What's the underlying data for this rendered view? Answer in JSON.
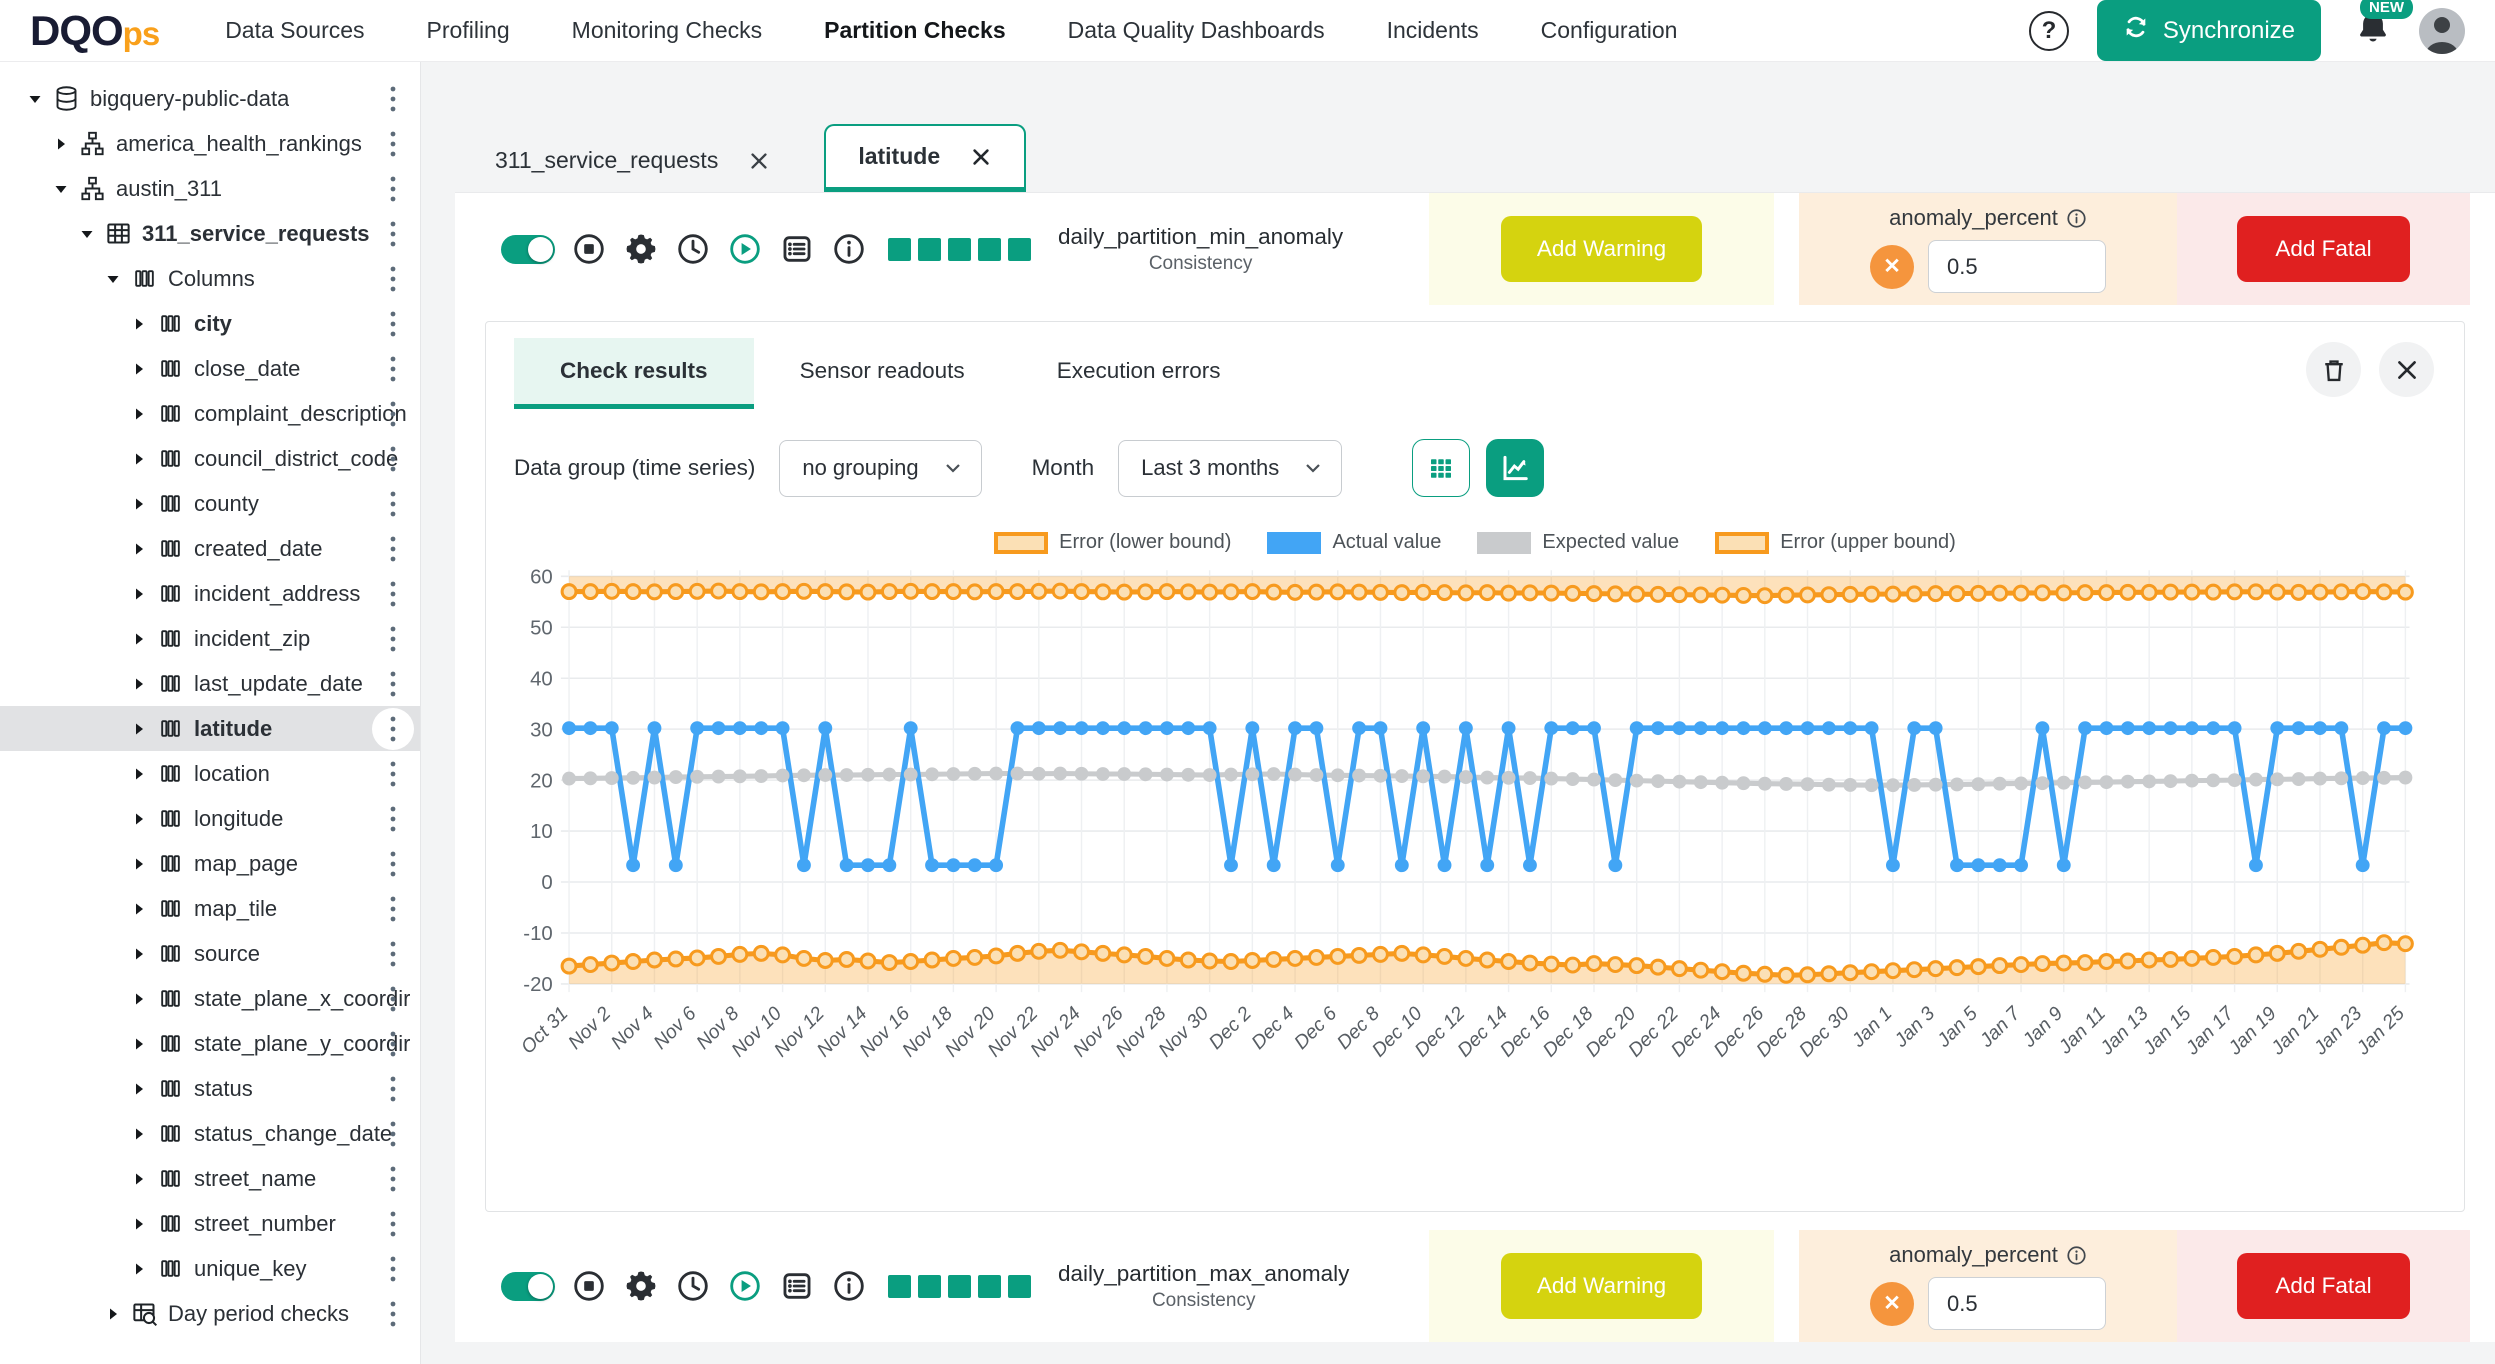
{
  "header": {
    "logo_primary": "DQO",
    "logo_secondary": "ps",
    "nav": [
      "Data Sources",
      "Profiling",
      "Monitoring Checks",
      "Partition Checks",
      "Data Quality Dashboards",
      "Incidents",
      "Configuration"
    ],
    "active_nav": "Partition Checks",
    "synchronize_label": "Synchronize",
    "notifications_badge": "NEW"
  },
  "sidebar": {
    "items": [
      {
        "level": 0,
        "icon": "database",
        "caret": "down",
        "label": "bigquery-public-data",
        "bold": false,
        "selected": false
      },
      {
        "level": 1,
        "icon": "schema",
        "caret": "right",
        "label": "america_health_rankings",
        "bold": false,
        "selected": false
      },
      {
        "level": 1,
        "icon": "schema",
        "caret": "down",
        "label": "austin_311",
        "bold": false,
        "selected": false
      },
      {
        "level": 2,
        "icon": "table",
        "caret": "down",
        "label": "311_service_requests",
        "bold": true,
        "selected": false
      },
      {
        "level": 3,
        "icon": "columns",
        "caret": "down",
        "label": "Columns",
        "bold": false,
        "selected": false
      },
      {
        "level": 4,
        "icon": "columns",
        "caret": "right",
        "label": "city",
        "bold": true,
        "selected": false
      },
      {
        "level": 4,
        "icon": "columns",
        "caret": "right",
        "label": "close_date",
        "bold": false,
        "selected": false
      },
      {
        "level": 4,
        "icon": "columns",
        "caret": "right",
        "label": "complaint_description",
        "bold": false,
        "selected": false
      },
      {
        "level": 4,
        "icon": "columns",
        "caret": "right",
        "label": "council_district_code",
        "bold": false,
        "selected": false
      },
      {
        "level": 4,
        "icon": "columns",
        "caret": "right",
        "label": "county",
        "bold": false,
        "selected": false
      },
      {
        "level": 4,
        "icon": "columns",
        "caret": "right",
        "label": "created_date",
        "bold": false,
        "selected": false
      },
      {
        "level": 4,
        "icon": "columns",
        "caret": "right",
        "label": "incident_address",
        "bold": false,
        "selected": false
      },
      {
        "level": 4,
        "icon": "columns",
        "caret": "right",
        "label": "incident_zip",
        "bold": false,
        "selected": false
      },
      {
        "level": 4,
        "icon": "columns",
        "caret": "right",
        "label": "last_update_date",
        "bold": false,
        "selected": false
      },
      {
        "level": 4,
        "icon": "columns",
        "caret": "right",
        "label": "latitude",
        "bold": true,
        "selected": true
      },
      {
        "level": 4,
        "icon": "columns",
        "caret": "right",
        "label": "location",
        "bold": false,
        "selected": false
      },
      {
        "level": 4,
        "icon": "columns",
        "caret": "right",
        "label": "longitude",
        "bold": false,
        "selected": false
      },
      {
        "level": 4,
        "icon": "columns",
        "caret": "right",
        "label": "map_page",
        "bold": false,
        "selected": false
      },
      {
        "level": 4,
        "icon": "columns",
        "caret": "right",
        "label": "map_tile",
        "bold": false,
        "selected": false
      },
      {
        "level": 4,
        "icon": "columns",
        "caret": "right",
        "label": "source",
        "bold": false,
        "selected": false
      },
      {
        "level": 4,
        "icon": "columns",
        "caret": "right",
        "label": "state_plane_x_coordir",
        "bold": false,
        "selected": false
      },
      {
        "level": 4,
        "icon": "columns",
        "caret": "right",
        "label": "state_plane_y_coordir",
        "bold": false,
        "selected": false
      },
      {
        "level": 4,
        "icon": "columns",
        "caret": "right",
        "label": "status",
        "bold": false,
        "selected": false
      },
      {
        "level": 4,
        "icon": "columns",
        "caret": "right",
        "label": "status_change_date",
        "bold": false,
        "selected": false
      },
      {
        "level": 4,
        "icon": "columns",
        "caret": "right",
        "label": "street_name",
        "bold": false,
        "selected": false
      },
      {
        "level": 4,
        "icon": "columns",
        "caret": "right",
        "label": "street_number",
        "bold": false,
        "selected": false
      },
      {
        "level": 4,
        "icon": "columns",
        "caret": "right",
        "label": "unique_key",
        "bold": false,
        "selected": false
      },
      {
        "level": 3,
        "icon": "table-search",
        "caret": "right",
        "label": "Day period checks",
        "bold": false,
        "selected": false
      }
    ]
  },
  "tabs": [
    {
      "label": "311_service_requests",
      "active": false
    },
    {
      "label": "latitude",
      "active": true
    }
  ],
  "check_rows": [
    {
      "name": "daily_partition_min_anomaly",
      "category": "Consistency",
      "warning_label": "Add Warning",
      "param_label": "anomaly_percent",
      "param_value": "0.5",
      "fatal_label": "Add Fatal"
    },
    {
      "name": "daily_partition_max_anomaly",
      "category": "Consistency",
      "warning_label": "Add Warning",
      "param_label": "anomaly_percent",
      "param_value": "0.5",
      "fatal_label": "Add Fatal"
    }
  ],
  "results_panel": {
    "tabs": [
      "Check results",
      "Sensor readouts",
      "Execution errors"
    ],
    "active_tab": "Check results",
    "data_group_label": "Data group (time series)",
    "data_group_value": "no grouping",
    "month_label": "Month",
    "month_value": "Last 3 months"
  },
  "chart_data": {
    "type": "line",
    "title": "",
    "xlabel": "",
    "ylabel": "",
    "ylim": [
      -20,
      60
    ],
    "ytick_step": 10,
    "x_tick_every": 2,
    "grid": true,
    "legend_position": "top-center",
    "legend": [
      {
        "label": "Error (lower bound)",
        "swatch": "band"
      },
      {
        "label": "Actual value",
        "swatch": "blue"
      },
      {
        "label": "Expected value",
        "swatch": "gray"
      },
      {
        "label": "Error (upper bound)",
        "swatch": "band"
      }
    ],
    "colors": {
      "blue": "#42a5f5",
      "gray": "#c9cbcd",
      "orange": "#f79a1e",
      "band": "rgba(247,154,30,0.3)",
      "band_solid": "#fbe0b5"
    },
    "x": [
      "Oct 31",
      "Nov 1",
      "Nov 2",
      "Nov 3",
      "Nov 4",
      "Nov 5",
      "Nov 6",
      "Nov 7",
      "Nov 8",
      "Nov 9",
      "Nov 10",
      "Nov 11",
      "Nov 12",
      "Nov 13",
      "Nov 14",
      "Nov 15",
      "Nov 16",
      "Nov 17",
      "Nov 18",
      "Nov 19",
      "Nov 20",
      "Nov 21",
      "Nov 22",
      "Nov 23",
      "Nov 24",
      "Nov 25",
      "Nov 26",
      "Nov 27",
      "Nov 28",
      "Nov 29",
      "Nov 30",
      "Dec 1",
      "Dec 2",
      "Dec 3",
      "Dec 4",
      "Dec 5",
      "Dec 6",
      "Dec 7",
      "Dec 8",
      "Dec 9",
      "Dec 10",
      "Dec 11",
      "Dec 12",
      "Dec 13",
      "Dec 14",
      "Dec 15",
      "Dec 16",
      "Dec 17",
      "Dec 18",
      "Dec 19",
      "Dec 20",
      "Dec 21",
      "Dec 22",
      "Dec 23",
      "Dec 24",
      "Dec 25",
      "Dec 26",
      "Dec 27",
      "Dec 28",
      "Dec 29",
      "Dec 30",
      "Dec 31",
      "Jan 1",
      "Jan 2",
      "Jan 3",
      "Jan 4",
      "Jan 5",
      "Jan 6",
      "Jan 7",
      "Jan 8",
      "Jan 9",
      "Jan 10",
      "Jan 11",
      "Jan 12",
      "Jan 13",
      "Jan 14",
      "Jan 15",
      "Jan 16",
      "Jan 17",
      "Jan 18",
      "Jan 19",
      "Jan 20",
      "Jan 21",
      "Jan 22",
      "Jan 23",
      "Jan 24",
      "Jan 25"
    ],
    "series": {
      "actual": [
        30.2,
        30.2,
        30.2,
        3.3,
        30.2,
        3.3,
        30.2,
        30.2,
        30.2,
        30.2,
        30.2,
        3.3,
        30.2,
        3.3,
        3.3,
        3.3,
        30.2,
        3.3,
        3.3,
        3.3,
        3.3,
        30.2,
        30.2,
        30.2,
        30.2,
        30.2,
        30.2,
        30.2,
        30.2,
        30.2,
        30.2,
        3.3,
        30.2,
        3.3,
        30.2,
        30.2,
        3.3,
        30.2,
        30.2,
        3.3,
        30.2,
        3.3,
        30.2,
        3.3,
        30.2,
        3.3,
        30.2,
        30.2,
        30.2,
        3.3,
        30.2,
        30.2,
        30.2,
        30.2,
        30.2,
        30.2,
        30.2,
        30.2,
        30.2,
        30.2,
        30.2,
        30.2,
        3.3,
        30.2,
        30.2,
        3.3,
        3.3,
        3.3,
        3.3,
        30.2,
        3.3,
        30.2,
        30.2,
        30.2,
        30.2,
        30.2,
        30.2,
        30.2,
        30.2,
        3.3,
        30.2,
        30.2,
        30.2,
        30.2,
        3.3,
        30.2,
        30.2
      ],
      "expected": [
        20.3,
        20.35,
        20.4,
        20.45,
        20.5,
        20.6,
        20.65,
        20.7,
        20.75,
        20.8,
        20.9,
        20.95,
        21.0,
        21.0,
        21.05,
        21.1,
        21.1,
        21.15,
        21.2,
        21.25,
        21.3,
        21.3,
        21.25,
        21.3,
        21.25,
        21.2,
        21.2,
        21.15,
        21.1,
        21.05,
        21.0,
        21.1,
        21.15,
        21.2,
        21.1,
        21.0,
        20.95,
        20.9,
        20.85,
        20.8,
        20.75,
        20.7,
        20.6,
        20.5,
        20.45,
        20.4,
        20.3,
        20.2,
        20.1,
        20.0,
        19.9,
        19.8,
        19.7,
        19.6,
        19.5,
        19.4,
        19.3,
        19.25,
        19.2,
        19.1,
        19.05,
        19.0,
        19.0,
        19.05,
        19.1,
        19.15,
        19.2,
        19.3,
        19.35,
        19.4,
        19.5,
        19.55,
        19.6,
        19.7,
        19.75,
        19.8,
        19.9,
        19.95,
        20.0,
        20.1,
        20.15,
        20.2,
        20.3,
        20.35,
        20.4,
        20.45,
        20.5
      ],
      "upper_bound": [
        57.0,
        57.0,
        57.05,
        57.0,
        56.95,
        57.0,
        57.05,
        57.1,
        57.0,
        56.95,
        57.0,
        57.05,
        57.0,
        56.95,
        56.9,
        57.0,
        57.05,
        57.0,
        57.0,
        56.95,
        57.0,
        57.0,
        57.05,
        57.1,
        57.0,
        56.95,
        56.9,
        56.95,
        57.0,
        56.95,
        56.9,
        56.95,
        57.0,
        56.9,
        56.85,
        56.9,
        56.95,
        56.9,
        56.85,
        56.8,
        56.85,
        56.8,
        56.75,
        56.8,
        56.7,
        56.75,
        56.7,
        56.65,
        56.6,
        56.55,
        56.5,
        56.45,
        56.4,
        56.35,
        56.3,
        56.25,
        56.2,
        56.3,
        56.35,
        56.4,
        56.45,
        56.5,
        56.5,
        56.55,
        56.6,
        56.6,
        56.65,
        56.7,
        56.7,
        56.75,
        56.75,
        56.8,
        56.8,
        56.85,
        56.85,
        56.9,
        56.9,
        56.9,
        56.95,
        56.95,
        56.9,
        56.85,
        56.9,
        56.95,
        57.0,
        56.95,
        56.9
      ],
      "lower_bound": [
        -16.5,
        -16.2,
        -15.9,
        -15.6,
        -15.3,
        -15.1,
        -14.9,
        -14.6,
        -14.2,
        -14.0,
        -14.3,
        -15.0,
        -15.4,
        -15.2,
        -15.5,
        -15.8,
        -15.6,
        -15.3,
        -15.0,
        -14.8,
        -14.5,
        -14.0,
        -13.6,
        -13.4,
        -13.7,
        -14.0,
        -14.3,
        -14.6,
        -15.0,
        -15.3,
        -15.5,
        -15.6,
        -15.4,
        -15.2,
        -15.0,
        -14.8,
        -14.6,
        -14.4,
        -14.2,
        -14.0,
        -14.3,
        -14.6,
        -15.0,
        -15.3,
        -15.6,
        -15.9,
        -16.1,
        -16.3,
        -16.0,
        -16.2,
        -16.4,
        -16.7,
        -17.0,
        -17.3,
        -17.6,
        -17.9,
        -18.1,
        -18.3,
        -18.2,
        -18.0,
        -17.8,
        -17.6,
        -17.4,
        -17.2,
        -17.0,
        -16.8,
        -16.6,
        -16.4,
        -16.2,
        -16.0,
        -15.9,
        -15.8,
        -15.6,
        -15.5,
        -15.3,
        -15.2,
        -15.0,
        -14.8,
        -14.6,
        -14.3,
        -14.0,
        -13.6,
        -13.2,
        -12.8,
        -12.4,
        -11.9,
        -12.1
      ]
    }
  }
}
